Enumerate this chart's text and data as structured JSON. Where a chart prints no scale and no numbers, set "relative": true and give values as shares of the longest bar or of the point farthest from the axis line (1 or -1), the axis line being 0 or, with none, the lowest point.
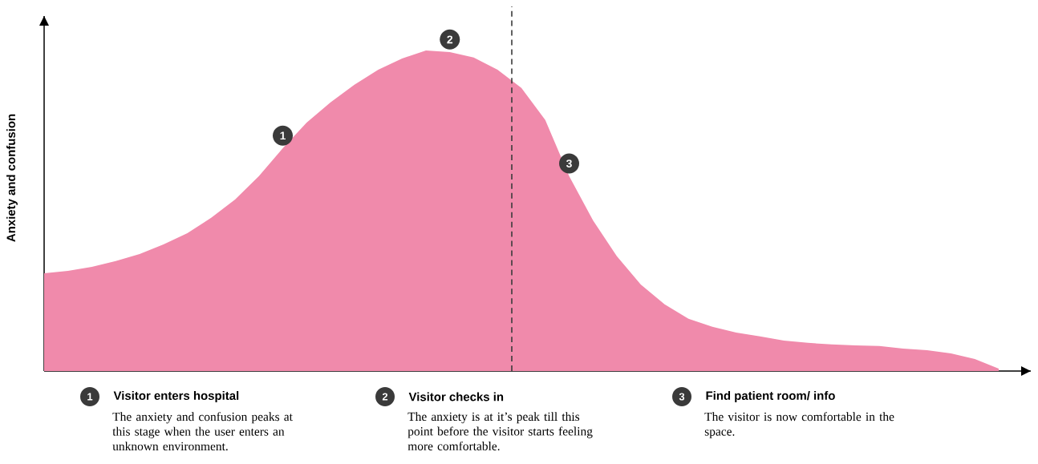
{
  "chart_data": {
    "type": "area",
    "relative": true,
    "color": "#f08aab",
    "ylabel": "Anxiety and confusion",
    "tick_labels": false,
    "categories": [
      null,
      null,
      null,
      null,
      null,
      null,
      null,
      null,
      null,
      null,
      null,
      null,
      null,
      null,
      null,
      null,
      null,
      null,
      null,
      null,
      null,
      null,
      null,
      null,
      null,
      null,
      null,
      null,
      null,
      null,
      null,
      null,
      null,
      null,
      null,
      null,
      null,
      null,
      null,
      null,
      null
    ],
    "values": [
      0.305,
      0.3125,
      0.325,
      0.343,
      0.365,
      0.395,
      0.43,
      0.478,
      0.535,
      0.608,
      0.695,
      0.775,
      0.838,
      0.893,
      0.94,
      0.975,
      1.0,
      0.995,
      0.978,
      0.94,
      0.883,
      0.783,
      0.608,
      0.47,
      0.358,
      0.27,
      0.208,
      0.163,
      0.138,
      0.12,
      0.108,
      0.095,
      0.088,
      0.083,
      0.08,
      0.078,
      0.07,
      0.065,
      0.055,
      0.0375,
      0.0075
    ],
    "annotations": [
      {
        "text": "1",
        "y": 0.695
      },
      {
        "text": "2",
        "y": 0.995
      },
      {
        "text": "3",
        "y": 0.608
      },
      "Visitor enters hospital",
      "The anxiety and confusion peaks at this stage when the user enters an unknown environment.",
      "Visitor checks in",
      "The anxiety is at it’s peak till this point before the visitor starts feeling more comfortable.",
      "Find patient room/ info",
      "The visitor is now comfortable in the space."
    ]
  }
}
